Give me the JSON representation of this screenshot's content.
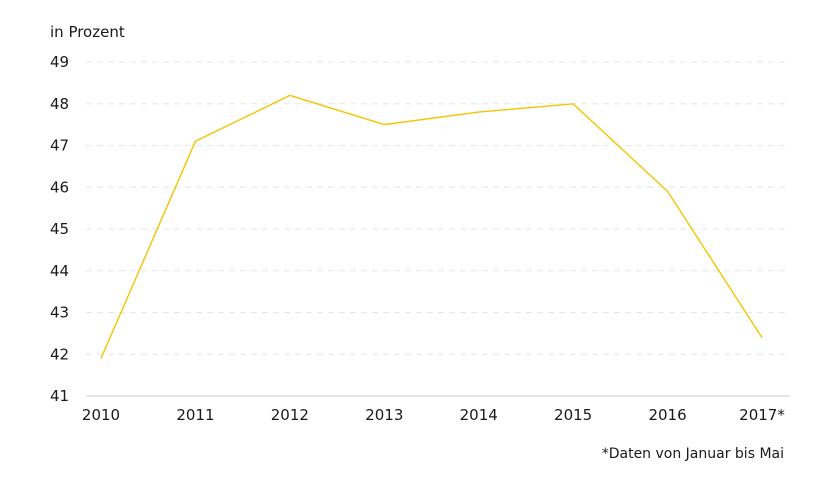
{
  "chart_data": {
    "type": "line",
    "ylabel": "in Prozent",
    "categories": [
      "2010",
      "2011",
      "2012",
      "2013",
      "2014",
      "2015",
      "2016",
      "2017*"
    ],
    "series": [
      {
        "values": [
          41.9,
          47.1,
          48.2,
          47.5,
          47.8,
          48.0,
          45.9,
          42.4
        ]
      }
    ],
    "ylim": [
      41,
      49
    ],
    "yticks": [
      41,
      42,
      43,
      44,
      45,
      46,
      47,
      48,
      49
    ],
    "grid": true,
    "line_color": "#f5c400",
    "footnote": "*Daten von Januar bis Mai"
  }
}
